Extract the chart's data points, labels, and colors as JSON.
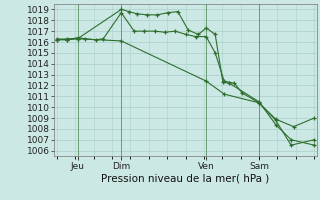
{
  "bg_color": "#cce8e4",
  "grid_color": "#aacfcb",
  "line_color": "#2d6e2d",
  "ylabel_text": "Pression niveau de la mer( hPa )",
  "ylim": [
    1005.5,
    1019.5
  ],
  "yticks": [
    1006,
    1007,
    1008,
    1009,
    1010,
    1011,
    1012,
    1013,
    1014,
    1015,
    1016,
    1017,
    1018,
    1019
  ],
  "xtick_labels": [
    "Jeu",
    "Dim",
    "Ven",
    "Sam"
  ],
  "xtick_pos": [
    0.08,
    0.25,
    0.58,
    0.785
  ],
  "vline_pos": [
    0.08,
    0.25,
    0.58,
    0.785
  ],
  "series1_x": [
    0.0,
    0.04,
    0.08,
    0.11,
    0.15,
    0.18,
    0.25,
    0.3,
    0.34,
    0.38,
    0.42,
    0.46,
    0.5,
    0.54,
    0.58,
    0.615,
    0.65,
    0.69,
    0.72,
    0.785,
    0.85,
    0.92,
    1.0
  ],
  "series1_y": [
    1016.3,
    1016.2,
    1016.4,
    1016.3,
    1016.2,
    1016.3,
    1018.7,
    1017.0,
    1017.0,
    1017.0,
    1016.9,
    1017.0,
    1016.7,
    1016.5,
    1016.5,
    1015.0,
    1012.4,
    1012.2,
    1011.3,
    1010.4,
    1008.9,
    1008.2,
    1009.0
  ],
  "series2_x": [
    0.0,
    0.04,
    0.08,
    0.25,
    0.28,
    0.31,
    0.35,
    0.39,
    0.43,
    0.47,
    0.51,
    0.55,
    0.58,
    0.615,
    0.645,
    0.67,
    0.785,
    0.85,
    0.91,
    1.0
  ],
  "series2_y": [
    1016.2,
    1016.3,
    1016.3,
    1019.0,
    1018.8,
    1018.6,
    1018.5,
    1018.5,
    1018.7,
    1018.8,
    1017.1,
    1016.7,
    1017.3,
    1016.7,
    1012.3,
    1012.2,
    1010.5,
    1008.4,
    1007.0,
    1006.5
  ],
  "series3_x": [
    0.0,
    0.04,
    0.08,
    0.25,
    0.58,
    0.65,
    0.785,
    0.85,
    0.91,
    1.0
  ],
  "series3_y": [
    1016.2,
    1016.2,
    1016.3,
    1016.1,
    1012.4,
    1011.2,
    1010.4,
    1008.8,
    1006.5,
    1007.0
  ],
  "font_size_label": 7.5,
  "font_size_tick": 6.5
}
